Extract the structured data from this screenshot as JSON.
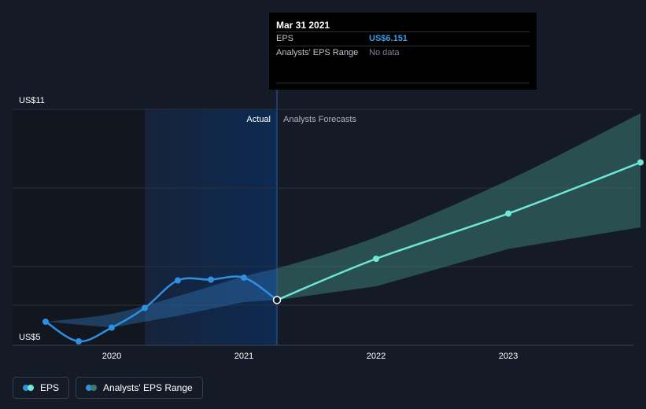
{
  "chart_data": {
    "type": "line",
    "currency": "US$",
    "y_axis_labels": [
      "US$11",
      "US$5"
    ],
    "ylim": [
      5,
      11
    ],
    "x_ticks": [
      2020,
      2021,
      2022,
      2023
    ],
    "region_labels": {
      "actual": "Actual",
      "forecast": "Analysts Forecasts"
    },
    "series": [
      {
        "name": "EPS",
        "color": "#2f8fe0",
        "x": [
          2019.5,
          2019.75,
          2020.0,
          2020.25,
          2020.5,
          2020.75,
          2021.0,
          2021.25
        ],
        "values": [
          5.6,
          5.1,
          5.45,
          5.95,
          6.65,
          6.67,
          6.72,
          6.151
        ]
      },
      {
        "name": "EPS forecast",
        "color": "#6ee7d8",
        "x": [
          2021.25,
          2022.0,
          2023.0,
          2024.0
        ],
        "values": [
          6.151,
          7.2,
          8.35,
          9.65
        ]
      }
    ],
    "range_band": {
      "name": "Analysts' EPS Range",
      "color": "#3d7a72",
      "x": [
        2019.5,
        2020.0,
        2020.5,
        2021.0,
        2021.25,
        2022.0,
        2023.0,
        2024.0
      ],
      "low": [
        5.6,
        5.45,
        5.75,
        6.1,
        6.15,
        6.5,
        7.45,
        8.0
      ],
      "high": [
        5.6,
        5.8,
        6.25,
        6.75,
        6.95,
        7.75,
        9.2,
        10.9
      ]
    }
  },
  "tooltip": {
    "date": "Mar 31 2021",
    "eps_label": "EPS",
    "eps_value": "US$6.151",
    "range_label": "Analysts' EPS Range",
    "range_value": "No data"
  },
  "legend": {
    "eps_label": "EPS",
    "eps_colors": [
      "#2f8fe0",
      "#6ee7d8"
    ],
    "range_label": "Analysts' EPS Range",
    "range_colors": [
      "#2f8fe0",
      "#3d7a72"
    ]
  }
}
